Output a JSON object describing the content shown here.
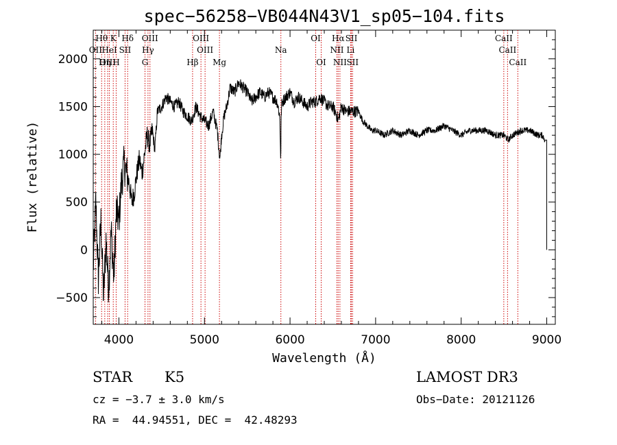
{
  "chart_data": {
    "type": "line",
    "title": "spec−56258−VB044N43V1_sp05−104.fits",
    "xlabel": "Wavelength (Å)",
    "ylabel": "Flux (relative)",
    "xlim": [
      3700,
      9100
    ],
    "ylim": [
      -780,
      2300
    ],
    "xticks": [
      4000,
      5000,
      6000,
      7000,
      8000,
      9000
    ],
    "yticks": [
      -500,
      0,
      500,
      1000,
      1500,
      2000
    ],
    "xtick_labels": [
      "4000",
      "5000",
      "6000",
      "7000",
      "8000",
      "9000"
    ],
    "ytick_labels": [
      "−500",
      "0",
      "500",
      "1000",
      "1500",
      "2000"
    ],
    "series": [
      {
        "name": "flux",
        "x": [
          3700,
          3730,
          3760,
          3790,
          3820,
          3850,
          3880,
          3910,
          3940,
          3970,
          4000,
          4030,
          4060,
          4090,
          4120,
          4150,
          4180,
          4210,
          4240,
          4270,
          4300,
          4330,
          4360,
          4390,
          4420,
          4450,
          4500,
          4550,
          4600,
          4650,
          4700,
          4750,
          4800,
          4850,
          4900,
          4950,
          5000,
          5050,
          5100,
          5150,
          5180,
          5200,
          5230,
          5260,
          5300,
          5350,
          5400,
          5450,
          5500,
          5550,
          5600,
          5650,
          5700,
          5750,
          5800,
          5850,
          5880,
          5892,
          5896,
          5900,
          5910,
          5950,
          6000,
          6050,
          6100,
          6150,
          6200,
          6250,
          6300,
          6350,
          6400,
          6450,
          6500,
          6550,
          6563,
          6600,
          6650,
          6700,
          6750,
          6800,
          6850,
          6900,
          6950,
          7000,
          7100,
          7200,
          7300,
          7400,
          7500,
          7600,
          7700,
          7800,
          7900,
          8000,
          8100,
          8200,
          8300,
          8400,
          8500,
          8550,
          8600,
          8700,
          8800,
          8900,
          8950,
          8980,
          9000
        ],
        "values": [
          -200,
          500,
          -300,
          300,
          -500,
          100,
          -400,
          200,
          -300,
          400,
          300,
          700,
          900,
          800,
          700,
          500,
          600,
          800,
          950,
          800,
          1000,
          1200,
          1100,
          1250,
          1050,
          1450,
          1500,
          1600,
          1550,
          1500,
          1550,
          1450,
          1400,
          1350,
          1500,
          1400,
          1350,
          1300,
          1450,
          1250,
          950,
          1200,
          1400,
          1500,
          1700,
          1650,
          1750,
          1700,
          1650,
          1550,
          1600,
          1650,
          1600,
          1650,
          1600,
          1550,
          1400,
          900,
          1350,
          1500,
          1550,
          1600,
          1650,
          1550,
          1600,
          1550,
          1500,
          1550,
          1550,
          1600,
          1550,
          1500,
          1500,
          1400,
          1350,
          1500,
          1450,
          1450,
          1450,
          1450,
          1350,
          1300,
          1250,
          1250,
          1200,
          1250,
          1200,
          1250,
          1200,
          1250,
          1250,
          1300,
          1250,
          1200,
          1250,
          1250,
          1250,
          1200,
          1200,
          1150,
          1200,
          1250,
          1250,
          1200,
          1200,
          1150,
          0
        ]
      }
    ],
    "lines": [
      {
        "name": "Hθ",
        "x": 3798,
        "row": 0
      },
      {
        "name": "K",
        "x": 3934,
        "row": 0
      },
      {
        "name": "Hδ",
        "x": 4102,
        "row": 0
      },
      {
        "name": "OIII",
        "x": 4363,
        "row": 0
      },
      {
        "name": "OIII",
        "x": 4959,
        "row": 0
      },
      {
        "name": "OI",
        "x": 6300,
        "row": 0
      },
      {
        "name": "Hα",
        "x": 6563,
        "row": 0
      },
      {
        "name": "SII",
        "x": 6717,
        "row": 0
      },
      {
        "name": "CaII",
        "x": 8498,
        "row": 0
      },
      {
        "name": "OII",
        "x": 3727,
        "row": 1
      },
      {
        "name": "HeI",
        "x": 3889,
        "row": 1
      },
      {
        "name": "SII",
        "x": 4072,
        "row": 1
      },
      {
        "name": "Hγ",
        "x": 4340,
        "row": 1
      },
      {
        "name": "OIII",
        "x": 5007,
        "row": 1
      },
      {
        "name": "Na",
        "x": 5893,
        "row": 1
      },
      {
        "name": "NII",
        "x": 6548,
        "row": 1
      },
      {
        "name": "Li",
        "x": 6708,
        "row": 1
      },
      {
        "name": "CaII",
        "x": 8542,
        "row": 1
      },
      {
        "name": "OIII",
        "x": 3869,
        "row": 2
      },
      {
        "name": "Hη",
        "x": 3835,
        "row": 2
      },
      {
        "name": "H",
        "x": 3968,
        "row": 2
      },
      {
        "name": "G",
        "x": 4305,
        "row": 2
      },
      {
        "name": "Hβ",
        "x": 4861,
        "row": 2
      },
      {
        "name": "Mg",
        "x": 5175,
        "row": 2
      },
      {
        "name": "OI",
        "x": 6364,
        "row": 2
      },
      {
        "name": "NII",
        "x": 6583,
        "row": 2
      },
      {
        "name": "SII",
        "x": 6731,
        "row": 2
      },
      {
        "name": "CaII",
        "x": 8662,
        "row": 2
      }
    ]
  },
  "info": {
    "class": "STAR",
    "subclass": "K5",
    "survey": "LAMOST DR3",
    "cz": "cz = −3.7 ± 3.0 km/s",
    "obs_date": "Obs−Date: 20121126",
    "radec": "RA =  44.94551, DEC =  42.48293"
  },
  "colors": {
    "spectrum": "#000000",
    "line_marker": "#cc0000",
    "axes": "#000000"
  }
}
